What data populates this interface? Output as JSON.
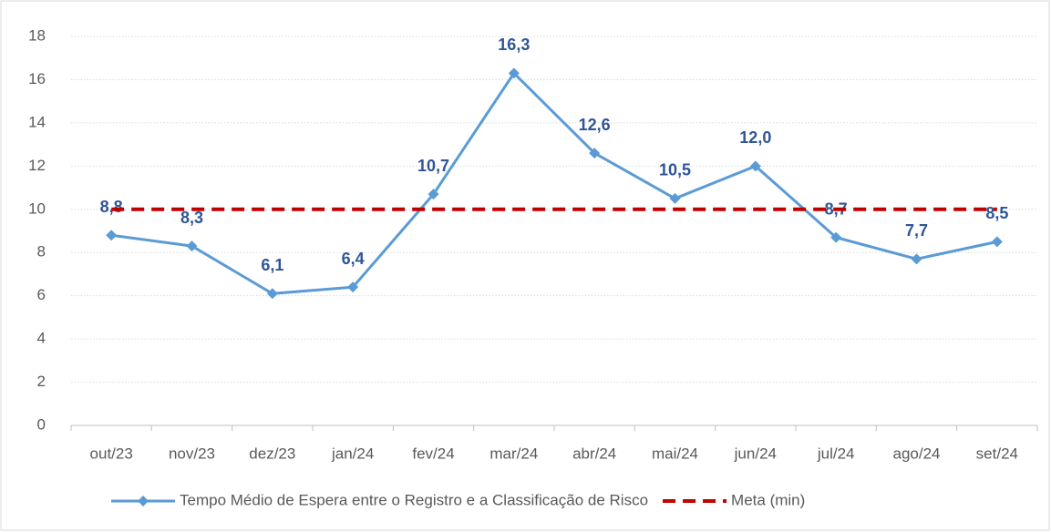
{
  "chart_data": {
    "type": "line",
    "categories": [
      "out/23",
      "nov/23",
      "dez/23",
      "jan/24",
      "fev/24",
      "mar/24",
      "abr/24",
      "mai/24",
      "jun/24",
      "jul/24",
      "ago/24",
      "set/24"
    ],
    "series": [
      {
        "name": "Tempo Médio de Espera entre o Registro e a Classificação de Risco",
        "color": "#5b9bd5",
        "values": [
          8.8,
          8.3,
          6.1,
          6.4,
          10.7,
          16.3,
          12.6,
          10.5,
          12.0,
          8.7,
          7.7,
          8.5
        ],
        "value_labels": [
          "8,8",
          "8,3",
          "6,1",
          "6,4",
          "10,7",
          "16,3",
          "12,6",
          "10,5",
          "12,0",
          "8,7",
          "7,7",
          "8,5"
        ]
      },
      {
        "name": "Meta (min)",
        "color": "#c00000",
        "dashed": true,
        "values": [
          10,
          10,
          10,
          10,
          10,
          10,
          10,
          10,
          10,
          10,
          10,
          10
        ]
      }
    ],
    "ylim": [
      0,
      18
    ],
    "yticks": [
      0,
      2,
      4,
      6,
      8,
      10,
      12,
      14,
      16,
      18
    ],
    "grid": true,
    "legend": "bottom"
  }
}
